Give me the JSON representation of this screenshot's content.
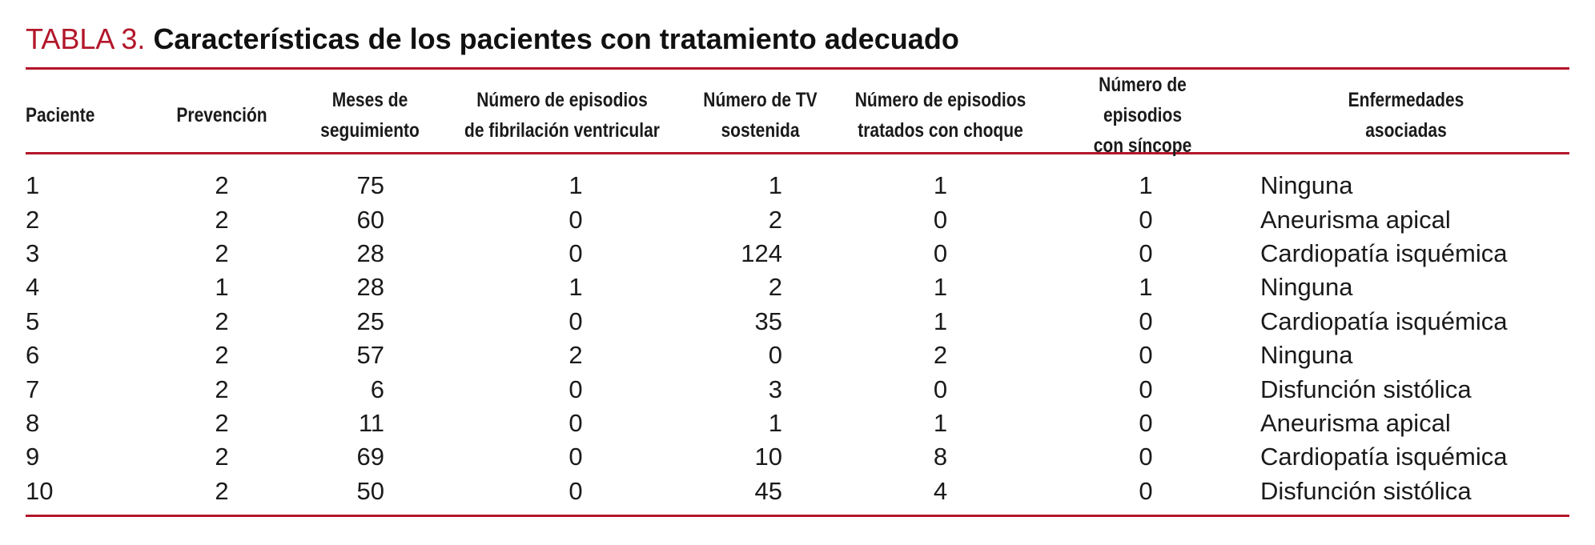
{
  "title": {
    "label": "TABLA 3.",
    "text": "Características de los pacientes con tratamiento adecuado"
  },
  "colors": {
    "accent": "#b3162a",
    "text": "#1a1a1a"
  },
  "table": {
    "headers": [
      "Paciente",
      "Prevención",
      "Meses de\nseguimiento",
      "Número de episodios\nde fibrilación ventricular",
      "Número de TV\nsostenida",
      "Número de episodios\ntratados con choque",
      "Número de episodios\ncon síncope",
      "Enfermedades\nasociadas"
    ],
    "rows": [
      [
        "1",
        "2",
        "75",
        "1",
        "1",
        "1",
        "1",
        "Ninguna"
      ],
      [
        "2",
        "2",
        "60",
        "0",
        "2",
        "0",
        "0",
        "Aneurisma apical"
      ],
      [
        "3",
        "2",
        "28",
        "0",
        "124",
        "0",
        "0",
        "Cardiopatía isquémica"
      ],
      [
        "4",
        "1",
        "28",
        "1",
        "2",
        "1",
        "1",
        "Ninguna"
      ],
      [
        "5",
        "2",
        "25",
        "0",
        "35",
        "1",
        "0",
        "Cardiopatía isquémica"
      ],
      [
        "6",
        "2",
        "57",
        "2",
        "0",
        "2",
        "0",
        "Ninguna"
      ],
      [
        "7",
        "2",
        "6",
        "0",
        "3",
        "0",
        "0",
        "Disfunción sistólica"
      ],
      [
        "8",
        "2",
        "11",
        "0",
        "1",
        "1",
        "0",
        "Aneurisma apical"
      ],
      [
        "9",
        "2",
        "69",
        "0",
        "10",
        "8",
        "0",
        "Cardiopatía isquémica"
      ],
      [
        "10",
        "2",
        "50",
        "0",
        "45",
        "4",
        "0",
        "Disfunción sistólica"
      ]
    ]
  }
}
